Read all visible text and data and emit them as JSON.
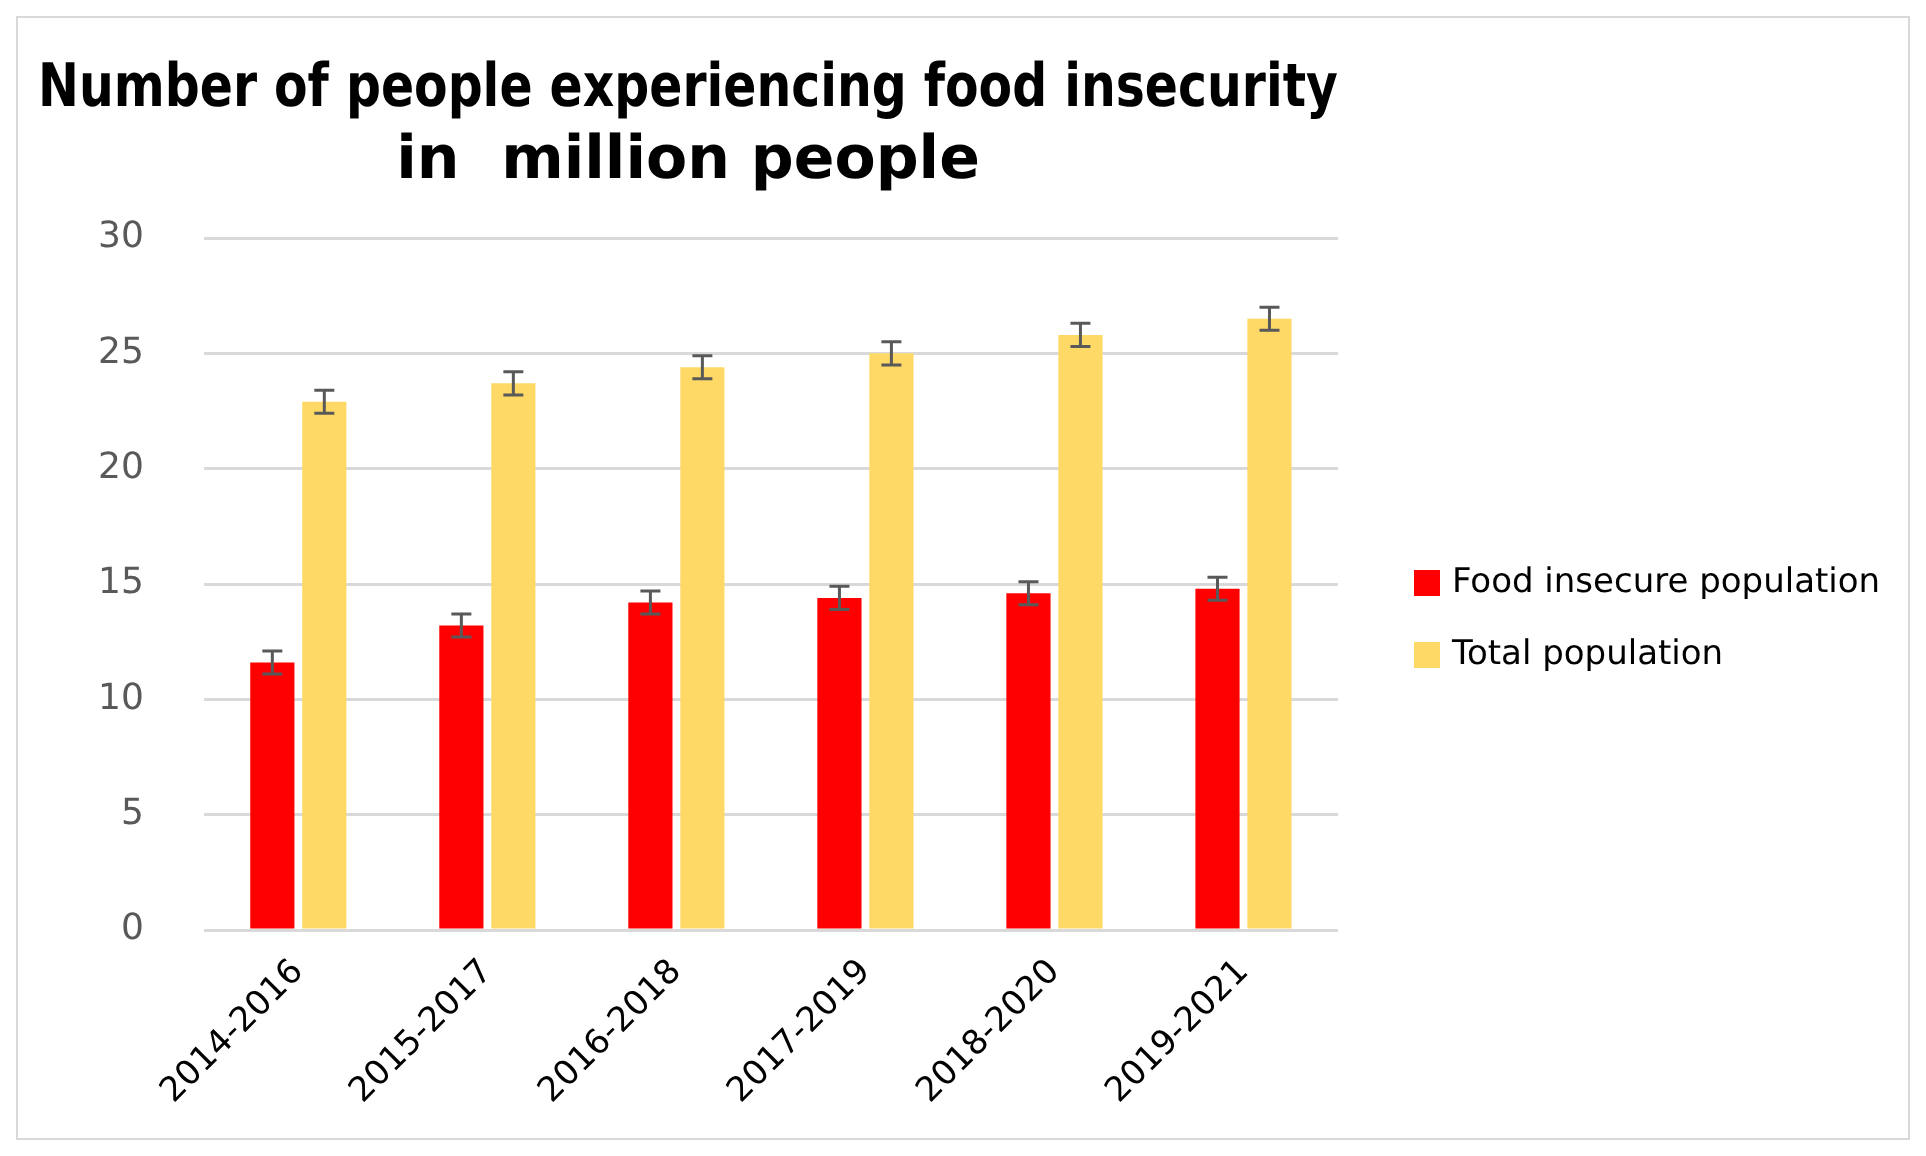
{
  "chart_data": {
    "type": "bar",
    "title": "Number of people experiencing food insecurity\nin  million people",
    "categories": [
      "2014-2016",
      "2015-2017",
      "2016-2018",
      "2017-2019",
      "2018-2020",
      "2019-2021"
    ],
    "series": [
      {
        "name": "Food insecure population",
        "color": "#ff0000",
        "values": [
          11.6,
          13.2,
          14.2,
          14.4,
          14.6,
          14.8
        ],
        "errors": [
          0.5,
          0.5,
          0.5,
          0.5,
          0.5,
          0.5
        ]
      },
      {
        "name": "Total population",
        "color": "#ffd966",
        "values": [
          22.9,
          23.7,
          24.4,
          25.0,
          25.8,
          26.5
        ],
        "errors": [
          0.5,
          0.5,
          0.5,
          0.5,
          0.5,
          0.5
        ]
      }
    ],
    "ylim": [
      0,
      30
    ],
    "yticks": [
      0,
      5,
      10,
      15,
      20,
      25,
      30
    ],
    "grid": "y",
    "legend": "right"
  }
}
